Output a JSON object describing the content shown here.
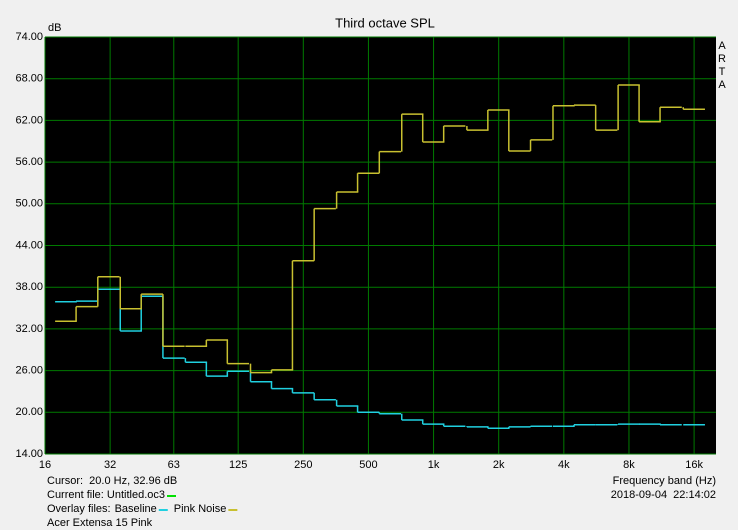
{
  "chart_data": {
    "type": "step",
    "title": "Third octave SPL",
    "y_label": "dB",
    "x_label": "Frequency band (Hz)",
    "brand": "ARTA",
    "timestamp": "2018-09-04  22:14:02",
    "cursor": "Cursor:  20.0 Hz, 32.96 dB",
    "current_file": "Current file: Untitled.oc3",
    "current_file_color": "#00e000",
    "overlay_label": "Overlay files:",
    "footer": "Acer Extensa 15 Pink",
    "log_x": true,
    "grid": true,
    "xlim": [
      16,
      20200
    ],
    "ylim": [
      14,
      74
    ],
    "xticks": [
      16,
      32,
      63,
      125,
      250,
      500,
      {
        "value": 1000,
        "label": "1k"
      },
      {
        "value": 2000,
        "label": "2k"
      },
      {
        "value": 4000,
        "label": "4k"
      },
      {
        "value": 8000,
        "label": "8k"
      },
      {
        "value": 16000,
        "label": "16k"
      }
    ],
    "yticks": [
      {
        "value": 14,
        "label": "14.00"
      },
      {
        "value": 20,
        "label": "20.00"
      },
      {
        "value": 26,
        "label": "26.00"
      },
      {
        "value": 32,
        "label": "32.00"
      },
      {
        "value": 38,
        "label": "38.00"
      },
      {
        "value": 44,
        "label": "44.00"
      },
      {
        "value": 50,
        "label": "50.00"
      },
      {
        "value": 56,
        "label": "56.00"
      },
      {
        "value": 62,
        "label": "62.00"
      },
      {
        "value": 68,
        "label": "68.00"
      },
      {
        "value": 74,
        "label": "74.00"
      }
    ],
    "x": [
      20,
      25,
      31.5,
      40,
      50,
      63,
      80,
      100,
      125,
      160,
      200,
      250,
      315,
      400,
      500,
      630,
      800,
      1000,
      1250,
      1600,
      2000,
      2500,
      3150,
      4000,
      5000,
      6300,
      8000,
      10000,
      12500,
      16000
    ],
    "series": [
      {
        "name": "Baseline",
        "color": "#20d0e0",
        "values": [
          35.9,
          36.0,
          37.7,
          31.7,
          36.7,
          27.8,
          27.2,
          25.2,
          25.9,
          24.4,
          23.4,
          22.8,
          21.8,
          20.9,
          20.0,
          19.8,
          18.9,
          18.3,
          18.0,
          17.9,
          17.7,
          17.9,
          18.0,
          18.0,
          18.2,
          18.2,
          18.3,
          18.3,
          18.2,
          18.2
        ]
      },
      {
        "name": "Pink Noise",
        "color": "#c8c030",
        "values": [
          33.1,
          35.2,
          39.5,
          34.9,
          37.0,
          29.5,
          29.5,
          30.4,
          27.0,
          25.7,
          26.1,
          41.8,
          49.3,
          51.7,
          54.4,
          57.5,
          62.9,
          58.9,
          61.2,
          60.6,
          63.5,
          57.6,
          59.2,
          64.1,
          64.2,
          60.6,
          67.1,
          61.8,
          63.9,
          63.6
        ]
      }
    ]
  }
}
